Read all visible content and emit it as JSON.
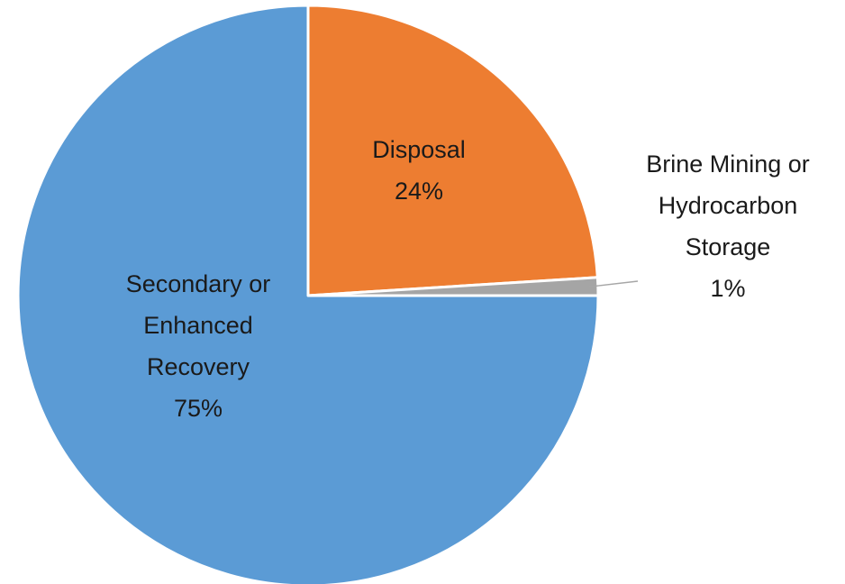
{
  "chart_data": {
    "type": "pie",
    "title": "",
    "start_angle_deg": 0,
    "direction": "clockwise",
    "slices": [
      {
        "name": "Disposal",
        "value": 24,
        "percent_label": "24%",
        "label_lines": [
          "Disposal",
          "24%"
        ],
        "color": "#ED7D31",
        "label_position": "inside"
      },
      {
        "name": "Brine Mining or Hydrocarbon Storage",
        "value": 1,
        "percent_label": "1%",
        "label_lines": [
          "Brine Mining or",
          "Hydrocarbon",
          "Storage",
          "1%"
        ],
        "color": "#A5A5A5",
        "label_position": "outside-with-leader"
      },
      {
        "name": "Secondary or Enhanced Recovery",
        "value": 75,
        "percent_label": "75%",
        "label_lines": [
          "Secondary or",
          "Enhanced",
          "Recovery",
          "75%"
        ],
        "color": "#5B9BD5",
        "label_position": "inside"
      }
    ],
    "slice_border_color": "#FFFFFF",
    "leader_line_color": "#A6A6A6",
    "legend": "none"
  }
}
